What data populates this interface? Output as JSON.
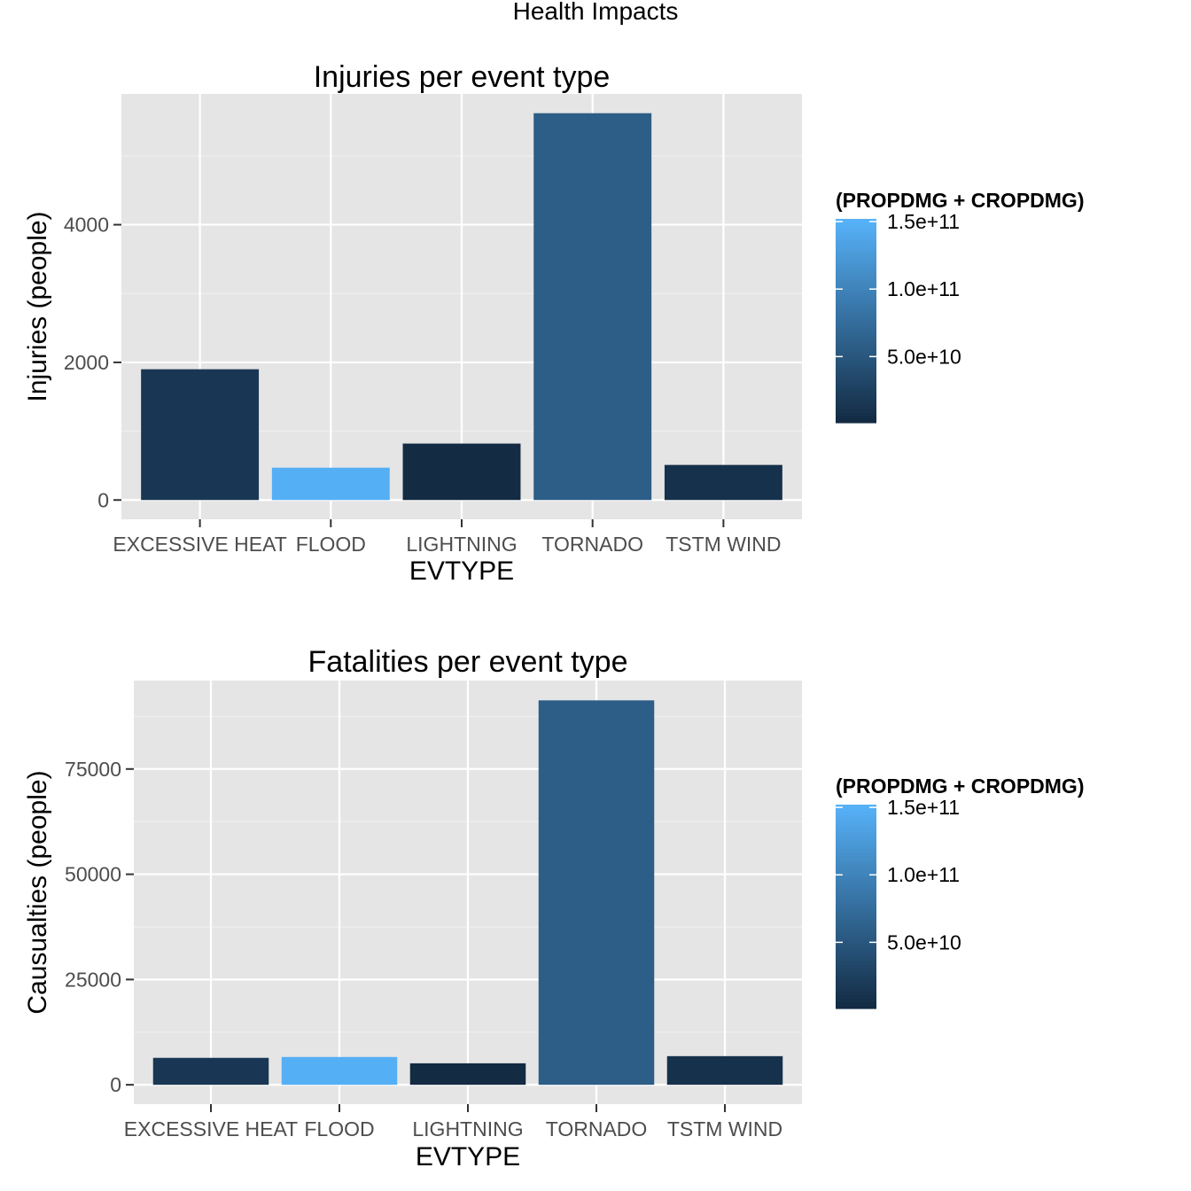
{
  "figure": {
    "title": "Health Impacts"
  },
  "chart_data": [
    {
      "type": "bar",
      "title": "Injuries per event type",
      "xlabel": "EVTYPE",
      "ylabel": "Injuries (people)",
      "categories": [
        "EXCESSIVE HEAT",
        "FLOOD",
        "LIGHTNING",
        "TORNADO",
        "TSTM WIND"
      ],
      "values": [
        1900,
        470,
        820,
        5620,
        510
      ],
      "fill_values": [
        15000000000,
        150000000000,
        1000000000,
        58000000000,
        8000000000
      ],
      "ylim": [
        -280,
        5900
      ],
      "yticks": [
        0,
        2000,
        4000
      ],
      "ytick_labels": [
        "0",
        "2000",
        "4000"
      ],
      "grid": true,
      "legend": {
        "title": "(PROPDMG + CROPDMG)",
        "position": "right",
        "range": [
          1000000000,
          152000000000
        ],
        "breaks": [
          50000000000,
          100000000000,
          150000000000
        ],
        "labels": [
          "5.0e+10",
          "1.0e+11",
          "1.5e+11"
        ],
        "low_color": "#132B43",
        "high_color": "#56B1F7"
      }
    },
    {
      "type": "bar",
      "title": "Fatalities per event type",
      "xlabel": "EVTYPE",
      "ylabel": "Causualties (people)",
      "categories": [
        "EXCESSIVE HEAT",
        "FLOOD",
        "LIGHTNING",
        "TORNADO",
        "TSTM WIND"
      ],
      "values": [
        6400,
        6600,
        5100,
        91300,
        6800
      ],
      "fill_values": [
        15000000000,
        150000000000,
        1000000000,
        58000000000,
        8000000000
      ],
      "ylim": [
        -4600,
        96000
      ],
      "yticks": [
        0,
        25000,
        50000,
        75000
      ],
      "ytick_labels": [
        "0",
        "25000",
        "50000",
        "75000"
      ],
      "grid": true,
      "legend": {
        "title": "(PROPDMG + CROPDMG)",
        "position": "right",
        "range": [
          1000000000,
          152000000000
        ],
        "breaks": [
          50000000000,
          100000000000,
          150000000000
        ],
        "labels": [
          "5.0e+10",
          "1.0e+11",
          "1.5e+11"
        ],
        "low_color": "#132B43",
        "high_color": "#56B1F7"
      }
    }
  ],
  "colors": {
    "panel_bg": "#E5E5E5",
    "grid_major": "#FFFFFF",
    "grid_minor": "#F2F2F2",
    "tick_text": "#4D4D4D",
    "axis_text": "#000000"
  }
}
